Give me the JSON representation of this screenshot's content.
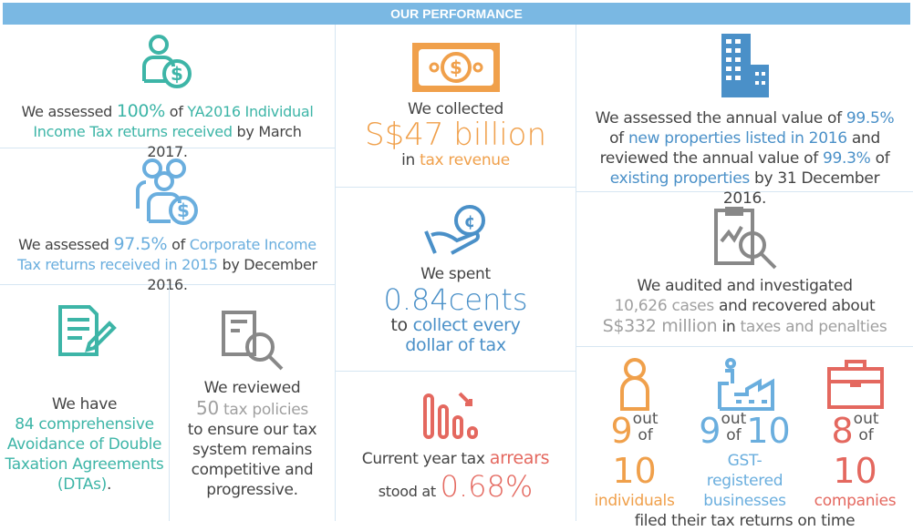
{
  "header": {
    "title": "OUR PERFORMANCE"
  },
  "colors": {
    "header": "#7ab8e3",
    "teal": "#3db5a7",
    "blue": "#6aaede",
    "orange": "#f0a04b",
    "red": "#e4685f",
    "gray": "#a0a0a0"
  },
  "individual": {
    "icon": "person-dollar-icon",
    "t1": "We assessed ",
    "t2": "100%",
    "t3": " of ",
    "t4": "YA2016 Individual Income Tax returns received",
    "t5": " by March 2017."
  },
  "corporate": {
    "icon": "group-dollar-icon",
    "t1": "We assessed ",
    "t2": "97.5%",
    "t3": " of ",
    "t4": "Corporate Income Tax returns received in 2015",
    "t5": " by December 2016."
  },
  "dta": {
    "icon": "document-pen-icon",
    "t1": "We have",
    "t2": "84 comprehensive Avoidance of Double Taxation Agreements (DTAs)",
    "t3": "."
  },
  "policies": {
    "icon": "document-magnifier-icon",
    "t1": "We reviewed",
    "t2": "50",
    "t3": " tax policies",
    "t4": "to ensure our tax system remains competitive and progressive."
  },
  "collected": {
    "icon": "banknote-icon",
    "t1": "We collected",
    "t2": "S$47 billion",
    "t3": "in ",
    "t4": "tax revenue"
  },
  "spent": {
    "icon": "hand-coin-icon",
    "t1": "We spent",
    "t2": "0.84cents",
    "t3": "to ",
    "t4": "collect every dollar of tax"
  },
  "arrears": {
    "icon": "bar-decline-icon",
    "t1": "Current year tax ",
    "t2": "arrears",
    "t3": "stood at ",
    "t4": "0.68%"
  },
  "property": {
    "icon": "building-icon",
    "t1": "We assessed the annual value of ",
    "t2": "99.5%",
    "t3": " of ",
    "t4": "new properties listed in 2016",
    "t5": " and reviewed the annual value of ",
    "t6": "99.3%",
    "t7": " of ",
    "t8": "existing properties",
    "t9": " by 31 December 2016."
  },
  "audit": {
    "icon": "report-magnifier-icon",
    "t1": "We audited and investigated",
    "t2": "10,626",
    "t3": " cases",
    "t4": " and recovered about",
    "t5": "S$332 million",
    "t6": " in ",
    "t7": "taxes and penalties"
  },
  "filing": {
    "items": [
      {
        "icon": "person-icon",
        "n": "9",
        "out": "out",
        "of": "of",
        "d": "10",
        "label": "individuals"
      },
      {
        "icon": "factory-icon",
        "n": "9",
        "out": "out",
        "of": "of",
        "d": "10",
        "label": "GST-registered businesses"
      },
      {
        "icon": "briefcase-icon",
        "n": "8",
        "out": "out",
        "of": "of",
        "d": "10",
        "label": "companies"
      }
    ],
    "footer": "filed their tax returns on time"
  }
}
